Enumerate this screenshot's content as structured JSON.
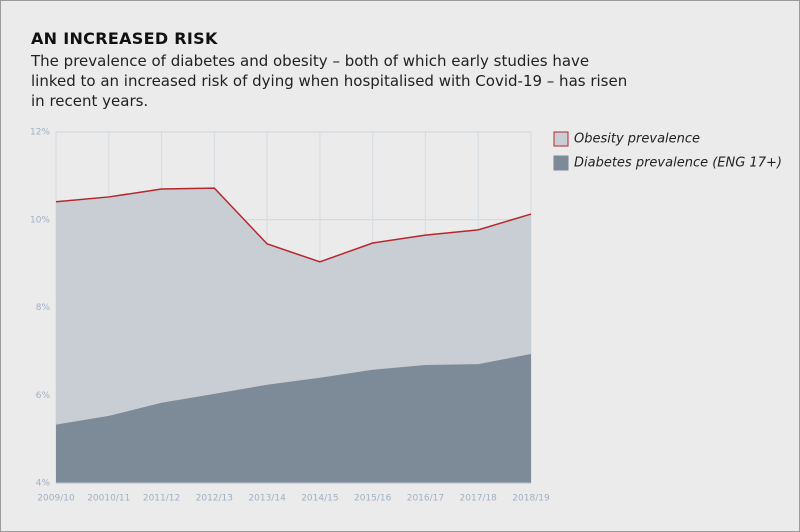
{
  "chart_data": {
    "type": "area",
    "title": "AN INCREASED RISK",
    "subtitle": "The prevalence of diabetes and obesity – both of which early studies have linked to an increased risk of dying when hospitalised with Covid-19 – has risen in recent years.",
    "categories": [
      "2009/10",
      "20010/11",
      "2011/12",
      "2012/13",
      "2013/14",
      "2014/15",
      "2015/16",
      "2016/17",
      "2017/18",
      "2018/19"
    ],
    "series": [
      {
        "name": "Obesity prevalence",
        "color": "#c9ced4",
        "line_color": "#b5272d",
        "values": [
          10.41,
          10.52,
          10.7,
          10.72,
          9.45,
          9.04,
          9.47,
          9.65,
          9.77,
          10.13
        ]
      },
      {
        "name": "Diabetes prevalence (ENG 17+)",
        "color": "#7d8a97",
        "values": [
          5.33,
          5.53,
          5.83,
          6.03,
          6.24,
          6.4,
          6.58,
          6.69,
          6.71,
          6.94
        ]
      }
    ],
    "ylim": [
      4,
      12
    ],
    "yticks": [
      {
        "value": 4,
        "label": "4%"
      },
      {
        "value": 6,
        "label": "6%"
      },
      {
        "value": 8,
        "label": "8%"
      },
      {
        "value": 10,
        "label": "10%"
      },
      {
        "value": 12,
        "label": "12%"
      }
    ],
    "grid": true
  }
}
